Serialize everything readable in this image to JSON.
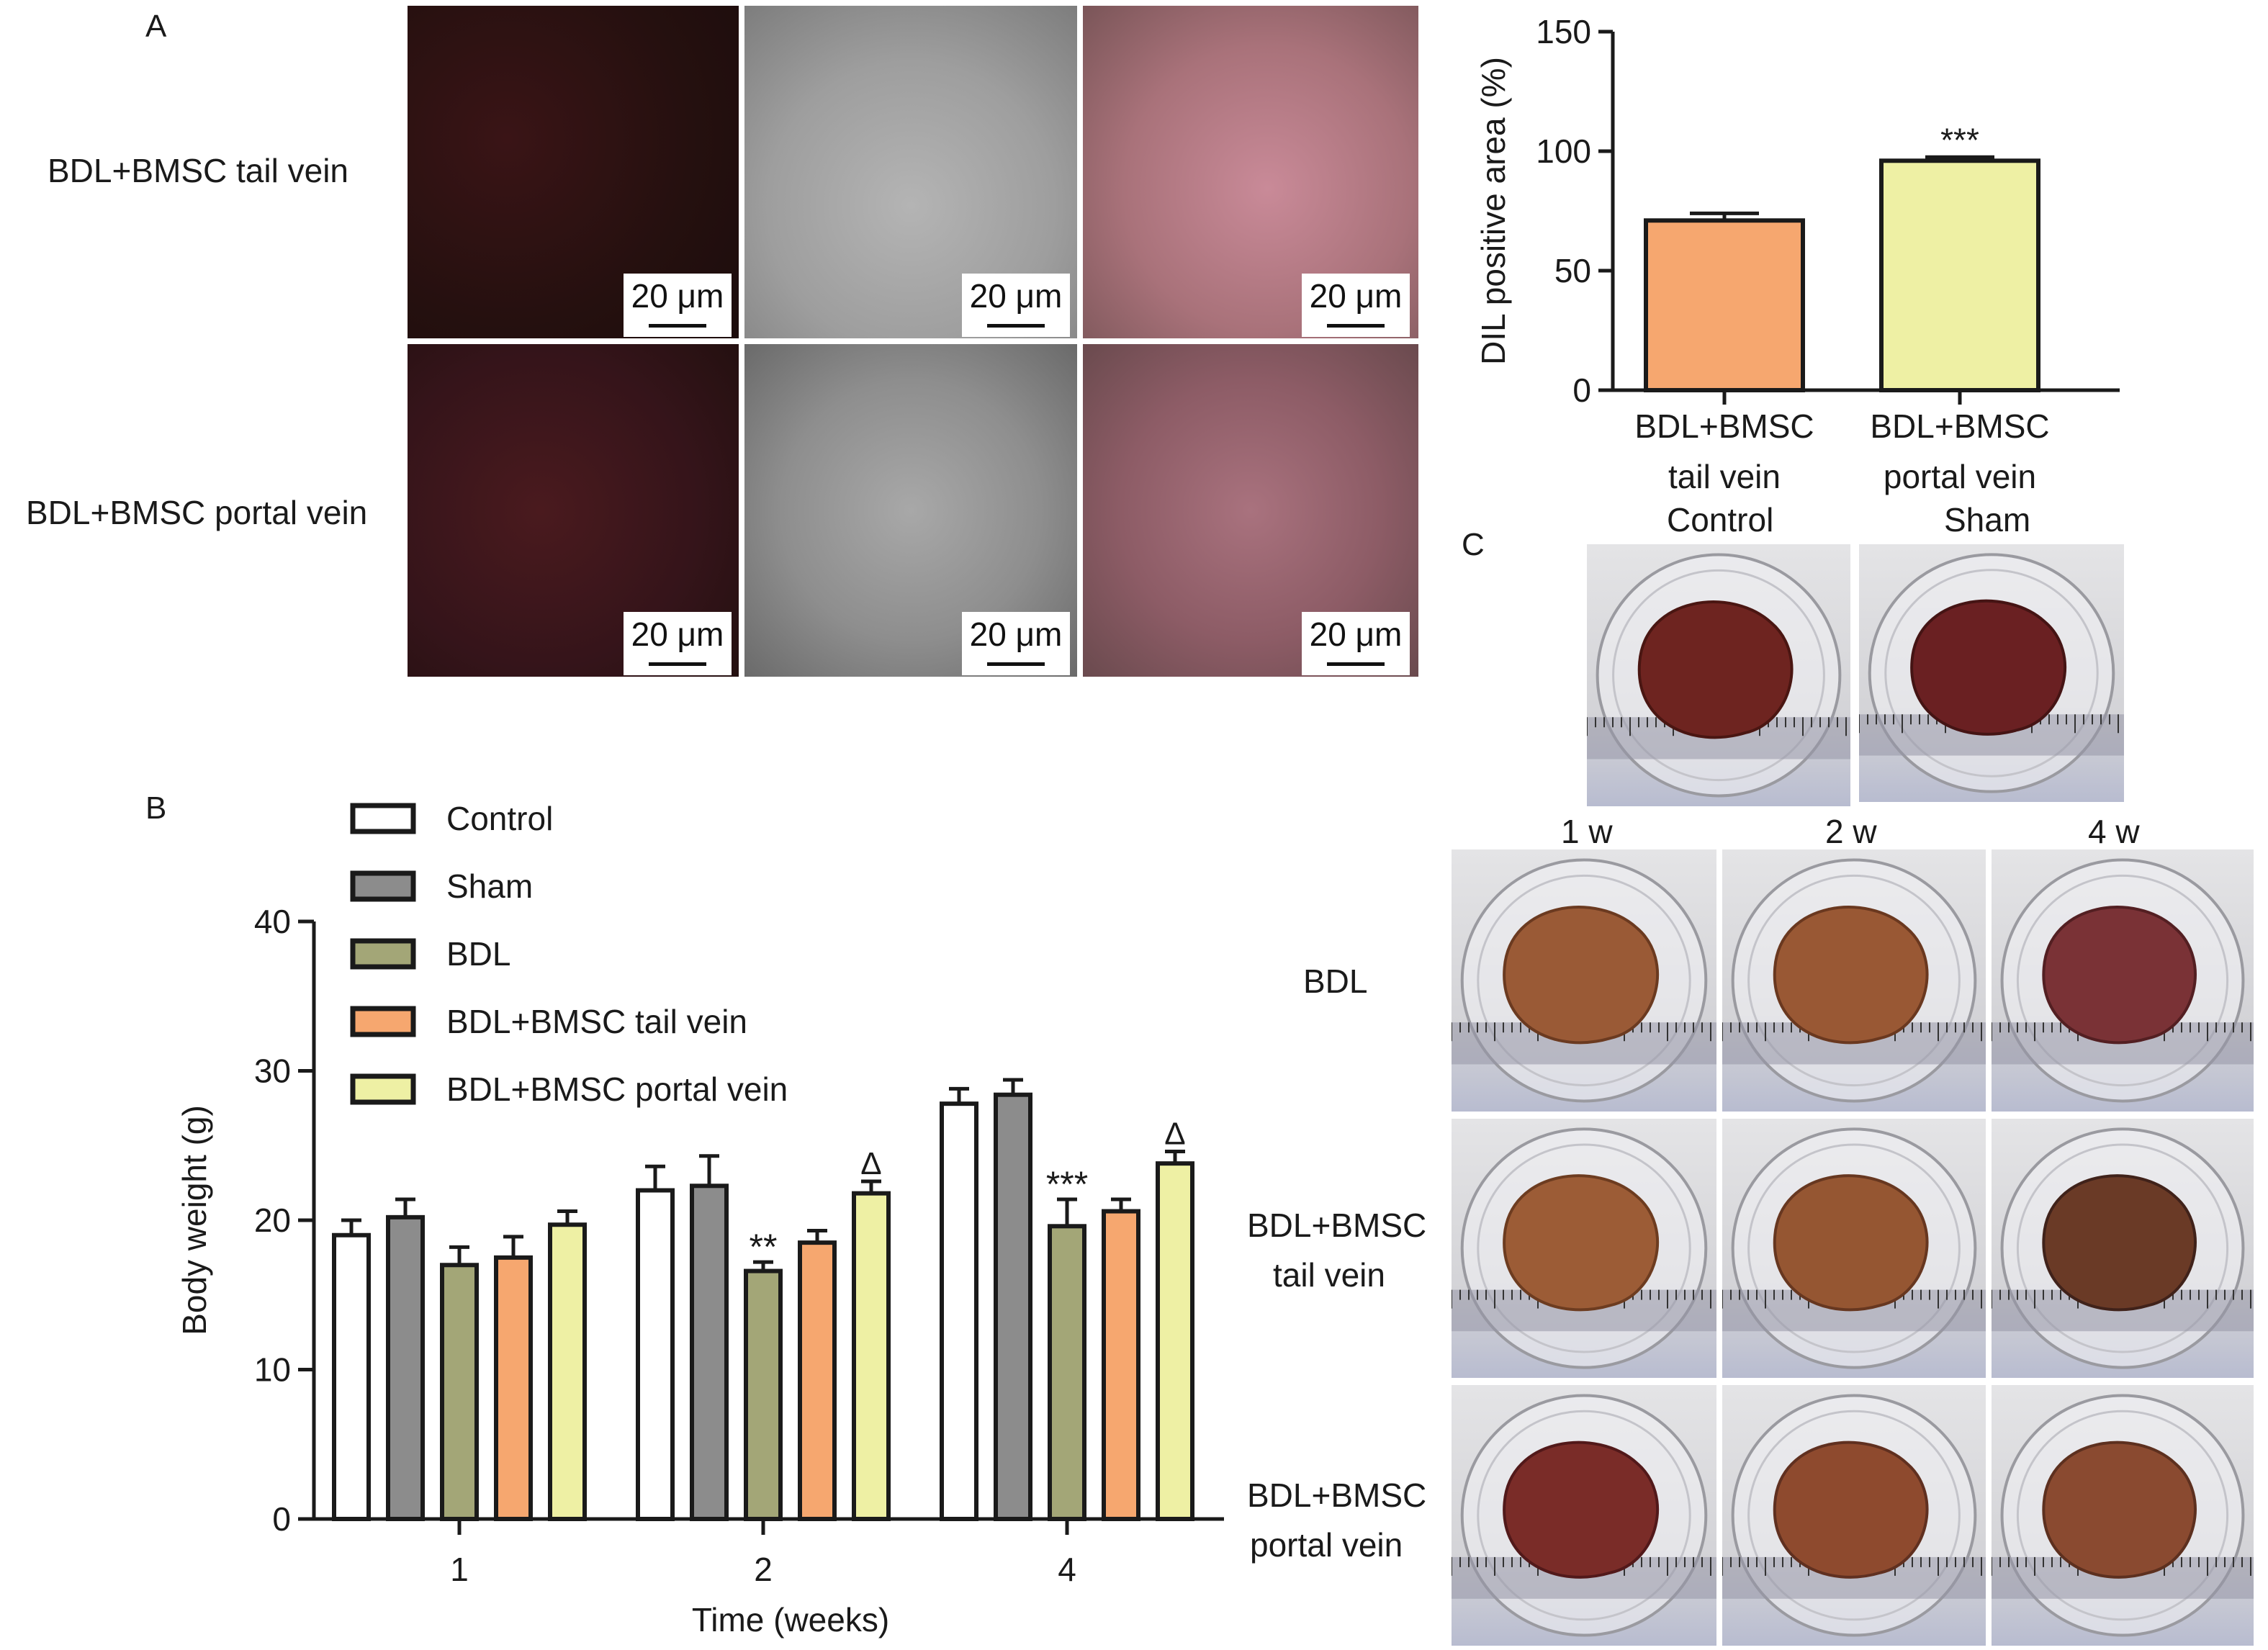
{
  "panel_letters": {
    "a": "A",
    "b": "B",
    "c": "C"
  },
  "panel_a": {
    "row_labels": [
      "BDL+BMSC tail vein",
      "BDL+BMSC portal vein"
    ],
    "scale_bar": "20 μm"
  },
  "panel_c": {
    "control_label": "Control",
    "sham_label": "Sham",
    "column_labels": [
      "1 w",
      "2 w",
      "4 w"
    ],
    "row_labels": [
      {
        "line1": "BDL",
        "line2": ""
      },
      {
        "line1": "BDL+BMSC",
        "line2": "tail vein"
      },
      {
        "line1": "BDL+BMSC",
        "line2": "portal vein"
      }
    ]
  },
  "colors": {
    "control": "#ffffff",
    "sham": "#8c8c8c",
    "bdl": "#a3a677",
    "bdl_bmsc_tail": "#f6a76f",
    "bdl_bmsc_portal": "#eef0a4"
  },
  "chart_data": [
    {
      "type": "bar",
      "title": "",
      "xlabel": "",
      "ylabel": "DIL positive area (%)",
      "ylim": [
        0,
        150
      ],
      "yticks": [
        "0",
        "50",
        "100",
        "150"
      ],
      "categories": [
        [
          "BDL+BMSC",
          "tail vein"
        ],
        [
          "BDL+BMSC",
          "portal vein"
        ]
      ],
      "values": [
        71,
        96
      ],
      "errors": [
        3,
        1.5
      ],
      "annotations": [
        "",
        "***"
      ],
      "grid": false
    },
    {
      "type": "bar",
      "title": "",
      "xlabel": "Time (weeks)",
      "ylabel": "Body weight (g)",
      "ylim": [
        0,
        40
      ],
      "yticks": [
        "0",
        "10",
        "20",
        "30",
        "40"
      ],
      "categories": [
        "1",
        "2",
        "4"
      ],
      "legend_position": "top-left",
      "grid": false,
      "series": [
        {
          "name": "Control",
          "values": [
            19.0,
            22.0,
            27.8
          ],
          "errors": [
            1.0,
            1.6,
            1.0
          ],
          "annotations": [
            "",
            "",
            ""
          ]
        },
        {
          "name": "Sham",
          "values": [
            20.2,
            22.3,
            28.4
          ],
          "errors": [
            1.2,
            2.0,
            1.0
          ],
          "annotations": [
            "",
            "",
            ""
          ]
        },
        {
          "name": "BDL",
          "values": [
            17.0,
            16.6,
            19.6
          ],
          "errors": [
            1.2,
            0.6,
            1.8
          ],
          "annotations": [
            "",
            "**",
            "***"
          ]
        },
        {
          "name": "BDL+BMSC tail vein",
          "values": [
            17.5,
            18.5,
            20.6
          ],
          "errors": [
            1.4,
            0.8,
            0.8
          ],
          "annotations": [
            "",
            "",
            ""
          ]
        },
        {
          "name": "BDL+BMSC portal vein",
          "values": [
            19.7,
            21.8,
            23.8
          ],
          "errors": [
            0.9,
            0.8,
            0.8
          ],
          "annotations": [
            "",
            "Δ",
            "Δ"
          ]
        }
      ]
    }
  ]
}
